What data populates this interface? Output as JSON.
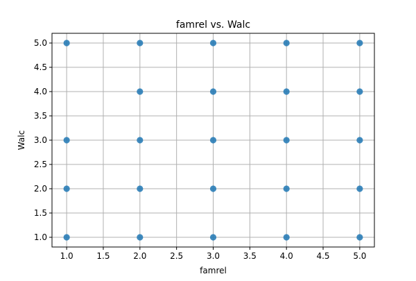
{
  "chart_data": {
    "type": "scatter",
    "title": "famrel vs. Walc",
    "xlabel": "famrel",
    "ylabel": "Walc",
    "xlim": [
      0.8,
      5.2
    ],
    "ylim": [
      0.8,
      5.2
    ],
    "xticks": [
      1.0,
      1.5,
      2.0,
      2.5,
      3.0,
      3.5,
      4.0,
      4.5,
      5.0
    ],
    "yticks": [
      1.0,
      1.5,
      2.0,
      2.5,
      3.0,
      3.5,
      4.0,
      4.5,
      5.0
    ],
    "xtick_labels": [
      "1.0",
      "1.5",
      "2.0",
      "2.5",
      "3.0",
      "3.5",
      "4.0",
      "4.5",
      "5.0"
    ],
    "ytick_labels": [
      "1.0",
      "1.5",
      "2.0",
      "2.5",
      "3.0",
      "3.5",
      "4.0",
      "4.5",
      "5.0"
    ],
    "grid": true,
    "marker_color": "#1f77b4",
    "points": [
      {
        "x": 1,
        "y": 1
      },
      {
        "x": 1,
        "y": 2
      },
      {
        "x": 1,
        "y": 3
      },
      {
        "x": 1,
        "y": 5
      },
      {
        "x": 2,
        "y": 1
      },
      {
        "x": 2,
        "y": 2
      },
      {
        "x": 2,
        "y": 3
      },
      {
        "x": 2,
        "y": 4
      },
      {
        "x": 2,
        "y": 5
      },
      {
        "x": 3,
        "y": 1
      },
      {
        "x": 3,
        "y": 2
      },
      {
        "x": 3,
        "y": 3
      },
      {
        "x": 3,
        "y": 4
      },
      {
        "x": 3,
        "y": 5
      },
      {
        "x": 4,
        "y": 1
      },
      {
        "x": 4,
        "y": 2
      },
      {
        "x": 4,
        "y": 3
      },
      {
        "x": 4,
        "y": 4
      },
      {
        "x": 4,
        "y": 5
      },
      {
        "x": 5,
        "y": 1
      },
      {
        "x": 5,
        "y": 2
      },
      {
        "x": 5,
        "y": 3
      },
      {
        "x": 5,
        "y": 4
      },
      {
        "x": 5,
        "y": 5
      }
    ]
  }
}
